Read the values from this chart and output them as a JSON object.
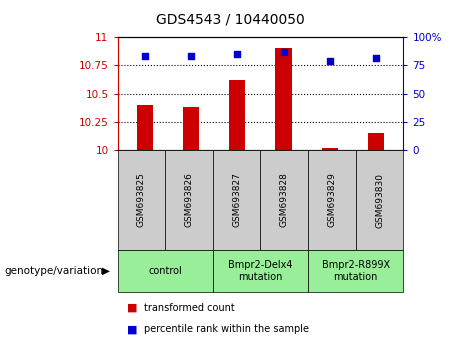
{
  "title": "GDS4543 / 10440050",
  "samples": [
    "GSM693825",
    "GSM693826",
    "GSM693827",
    "GSM693828",
    "GSM693829",
    "GSM693830"
  ],
  "bar_values": [
    10.4,
    10.38,
    10.62,
    10.9,
    10.02,
    10.15
  ],
  "dot_values": [
    83,
    83,
    85,
    87,
    79,
    82
  ],
  "ylim_left": [
    10,
    11
  ],
  "ylim_right": [
    0,
    100
  ],
  "yticks_left": [
    10,
    10.25,
    10.5,
    10.75,
    11
  ],
  "yticks_right": [
    0,
    25,
    50,
    75,
    100
  ],
  "bar_color": "#cc0000",
  "dot_color": "#0000cc",
  "sample_bg_color": "#cccccc",
  "genotype_bg_color": "#99ee99",
  "groups": [
    {
      "label": "control",
      "span": [
        0,
        2
      ]
    },
    {
      "label": "Bmpr2-Delx4\nmutation",
      "span": [
        2,
        4
      ]
    },
    {
      "label": "Bmpr2-R899X\nmutation",
      "span": [
        4,
        6
      ]
    }
  ],
  "legend_items": [
    {
      "color": "#cc0000",
      "label": "transformed count"
    },
    {
      "color": "#0000cc",
      "label": "percentile rank within the sample"
    }
  ],
  "left_axis_color": "#cc0000",
  "right_axis_color": "#0000cc",
  "genotype_label": "genotype/variation",
  "title_fontsize": 10,
  "tick_fontsize": 7.5,
  "sample_fontsize": 6.5,
  "group_fontsize": 7,
  "legend_fontsize": 7,
  "genotype_label_fontsize": 7.5
}
